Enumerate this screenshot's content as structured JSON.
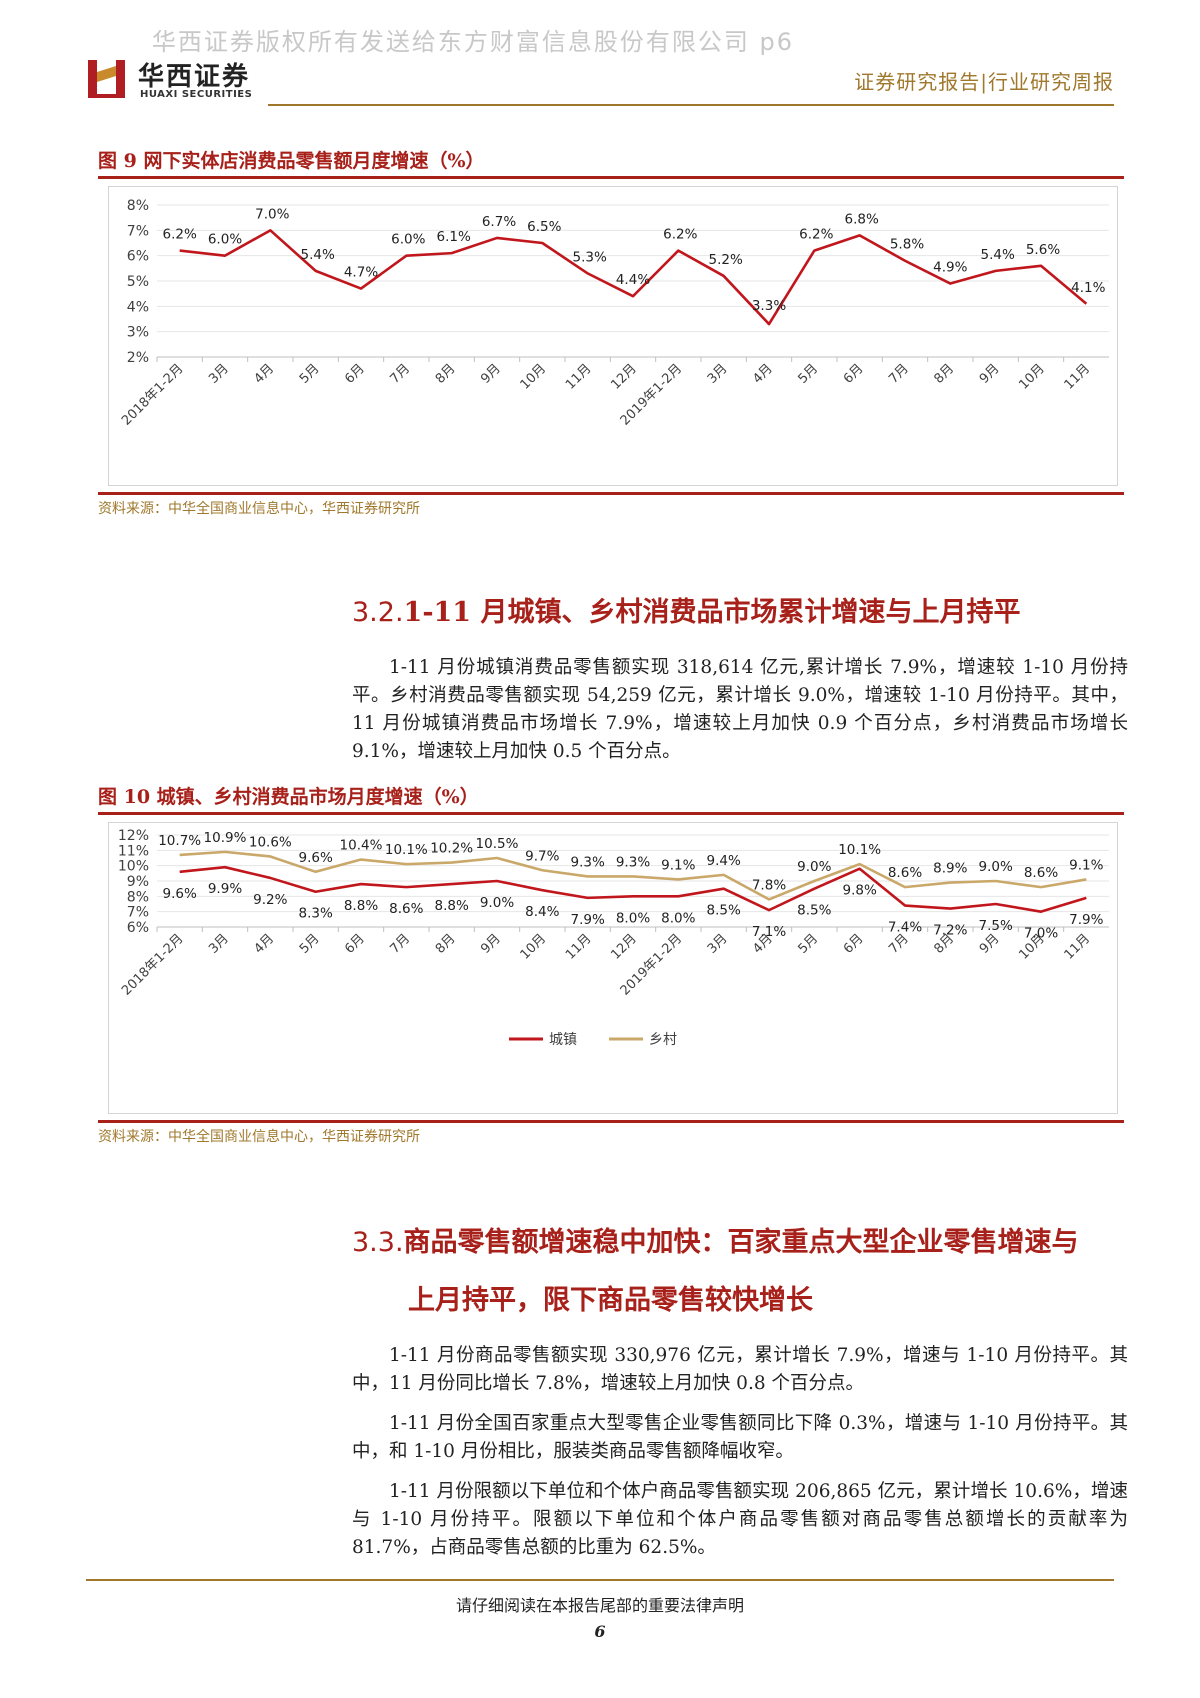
{
  "watermark": "华西证券版权所有发送给东方财富信息股份有限公司 p6",
  "header": {
    "logo_cn": "华西证券",
    "logo_en": "HUAXI SECURITIES",
    "report_type": "证券研究报告|行业研究周报"
  },
  "figure9": {
    "title": "图 9 网下实体店消费品零售额月度增速（%）",
    "source": "资料来源：中华全国商业信息中心，华西证券研究所",
    "colors": {
      "line": "#c0161c",
      "grid": "#e6e6e6",
      "axis": "#bfbfbf",
      "text": "#404040"
    },
    "chart_data": {
      "type": "line",
      "title": "网下实体店消费品零售额月度增速（%）",
      "categories": [
        "2018年1-2月",
        "3月",
        "4月",
        "5月",
        "6月",
        "7月",
        "8月",
        "9月",
        "10月",
        "11月",
        "12月",
        "2019年1-2月",
        "3月",
        "4月",
        "5月",
        "6月",
        "7月",
        "8月",
        "9月",
        "10月",
        "11月"
      ],
      "series": [
        {
          "name": "网下实体店消费品零售额增速",
          "values": [
            6.2,
            6.0,
            7.0,
            5.4,
            4.7,
            6.0,
            6.1,
            6.7,
            6.5,
            5.3,
            4.4,
            6.2,
            5.2,
            3.3,
            6.2,
            6.8,
            5.8,
            4.9,
            5.4,
            5.6,
            4.1
          ],
          "labels": [
            "6.2%",
            "6.0%",
            "7.0%",
            "5.4%",
            "4.7%",
            "6.0%",
            "6.1%",
            "6.7%",
            "6.5%",
            "5.3%",
            "4.4%",
            "6.2%",
            "5.2%",
            "3.3%",
            "6.2%",
            "6.8%",
            "5.8%",
            "4.9%",
            "5.4%",
            "5.6%",
            "4.1%"
          ]
        }
      ],
      "ylim": [
        2,
        8
      ],
      "yticks": [
        2,
        3,
        4,
        5,
        6,
        7,
        8
      ],
      "ytick_labels": [
        "2%",
        "3%",
        "4%",
        "5%",
        "6%",
        "7%",
        "8%"
      ],
      "xlabel": "",
      "ylabel": "",
      "grid": true
    }
  },
  "section32": {
    "number": "3.2.",
    "title": "1-11 月城镇、乡村消费品市场累计增速与上月持平",
    "paragraph": "1-11 月份城镇消费品零售额实现 318,614 亿元,累计增长 7.9%，增速较 1-10 月份持平。乡村消费品零售额实现 54,259 亿元，累计增长 9.0%，增速较 1-10 月份持平。其中，11 月份城镇消费品市场增长 7.9%，增速较上月加快 0.9 个百分点，乡村消费品市场增长 9.1%，增速较上月加快 0.5 个百分点。"
  },
  "figure10": {
    "title": "图 10 城镇、乡村消费品市场月度增速（%）",
    "source": "资料来源：中华全国商业信息中心，华西证券研究所",
    "colors": {
      "urban": "#c0161c",
      "rural": "#c9a86a",
      "grid": "#e6e6e6",
      "axis": "#bfbfbf",
      "text": "#404040"
    },
    "chart_data": {
      "type": "line",
      "title": "城镇、乡村消费品市场月度增速（%）",
      "categories": [
        "2018年1-2月",
        "3月",
        "4月",
        "5月",
        "6月",
        "7月",
        "8月",
        "9月",
        "10月",
        "11月",
        "12月",
        "2019年1-2月",
        "3月",
        "4月",
        "5月",
        "6月",
        "7月",
        "8月",
        "9月",
        "10月",
        "11月"
      ],
      "series": [
        {
          "name": "城镇",
          "values": [
            9.6,
            9.9,
            9.2,
            8.3,
            8.8,
            8.6,
            8.8,
            9.0,
            8.4,
            7.9,
            8.0,
            8.0,
            8.5,
            7.1,
            8.5,
            9.8,
            7.4,
            7.2,
            7.5,
            7.0,
            7.9
          ],
          "labels": [
            "9.6%",
            "9.9%",
            "9.2%",
            "8.3%",
            "8.8%",
            "8.6%",
            "8.8%",
            "9.0%",
            "8.4%",
            "7.9%",
            "8.0%",
            "8.0%",
            "8.5%",
            "7.1%",
            "8.5%",
            "9.8%",
            "7.4%",
            "7.2%",
            "7.5%",
            "7.0%",
            "7.9%"
          ]
        },
        {
          "name": "乡村",
          "values": [
            10.7,
            10.9,
            10.6,
            9.6,
            10.4,
            10.1,
            10.2,
            10.5,
            9.7,
            9.3,
            9.3,
            9.1,
            9.4,
            7.8,
            9.0,
            10.1,
            8.6,
            8.9,
            9.0,
            8.6,
            9.1
          ],
          "labels": [
            "10.7%",
            "10.9%",
            "10.6%",
            "9.6%",
            "10.4%",
            "10.1%",
            "10.2%",
            "10.5%",
            "9.7%",
            "9.3%",
            "9.3%",
            "9.1%",
            "9.4%",
            "7.8%",
            "9.0%",
            "10.1%",
            "8.6%",
            "8.9%",
            "9.0%",
            "8.6%",
            "9.1%"
          ]
        }
      ],
      "ylim": [
        6,
        12
      ],
      "yticks": [
        6,
        7,
        8,
        9,
        10,
        11,
        12
      ],
      "ytick_labels": [
        "6%",
        "7%",
        "8%",
        "9%",
        "10%",
        "11%",
        "12%"
      ],
      "legend": "bottom-center",
      "xlabel": "",
      "ylabel": "",
      "grid": true
    }
  },
  "section33": {
    "number": "3.3.",
    "title_line1": "商品零售额增速稳中加快：百家重点大型企业零售增速与",
    "title_line2": "上月持平，限下商品零售较快增长",
    "paragraphs": [
      "1-11 月份商品零售额实现 330,976 亿元，累计增长 7.9%，增速与 1-10 月份持平。其中，11 月份同比增长 7.8%，增速较上月加快 0.8 个百分点。",
      "1-11 月份全国百家重点大型零售企业零售额同比下降 0.3%，增速与 1-10 月份持平。其中，和 1-10 月份相比，服装类商品零售额降幅收窄。",
      "1-11 月份限额以下单位和个体户商品零售额实现 206,865 亿元，累计增长 10.6%，增速与 1-10 月份持平。限额以下单位和个体户商品零售额对商品零售总额增长的贡献率为 81.7%，占商品零售总额的比重为 62.5%。"
    ]
  },
  "footer": {
    "note": "请仔细阅读在本报告尾部的重要法律声明",
    "page_number": "6"
  }
}
